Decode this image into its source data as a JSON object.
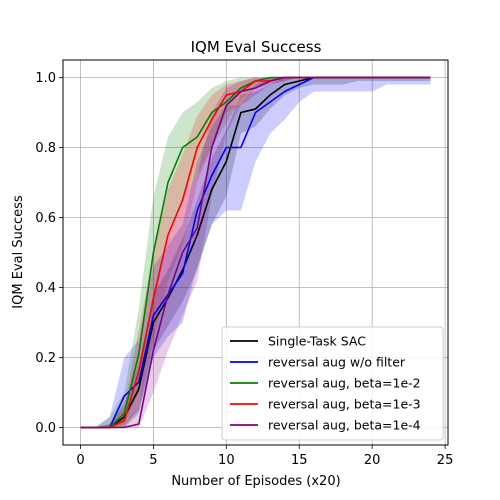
{
  "chart_data": {
    "type": "line",
    "title": "IQM Eval Success",
    "xlabel": "Number of Episodes (x20)",
    "ylabel": "IQM Eval Success",
    "xlim": [
      -1.2,
      25.2
    ],
    "ylim": [
      -0.05,
      1.05
    ],
    "xticks": [
      "0",
      "5",
      "10",
      "15",
      "20",
      "25"
    ],
    "yticks": [
      "0.0",
      "0.2",
      "0.4",
      "0.6",
      "0.8",
      "1.0"
    ],
    "grid": true,
    "legend_position": "bottom-right",
    "series": [
      {
        "name": "Single-Task SAC",
        "color": "#000000",
        "x": [
          0,
          1,
          2,
          3,
          4,
          5,
          6,
          7,
          8,
          9,
          10,
          11,
          12,
          13,
          14,
          15,
          16,
          17,
          18,
          19,
          20,
          21,
          22,
          23,
          24
        ],
        "values": [
          0,
          0,
          0,
          0.03,
          0.11,
          0.3,
          0.37,
          0.45,
          0.55,
          0.68,
          0.76,
          0.9,
          0.91,
          0.95,
          0.98,
          0.99,
          1.0,
          1.0,
          1.0,
          1.0,
          1.0,
          1.0,
          1.0,
          1.0,
          1.0
        ],
        "lower": [
          0,
          0,
          0,
          0,
          0.04,
          0.22,
          0.29,
          0.36,
          0.45,
          0.58,
          0.66,
          0.84,
          0.86,
          0.91,
          0.95,
          0.97,
          0.98,
          0.98,
          0.98,
          0.99,
          0.99,
          0.99,
          0.99,
          0.99,
          0.99
        ],
        "upper": [
          0,
          0,
          0.01,
          0.07,
          0.18,
          0.38,
          0.45,
          0.54,
          0.65,
          0.77,
          0.85,
          0.95,
          0.96,
          0.98,
          1.0,
          1.0,
          1.0,
          1.0,
          1.0,
          1.0,
          1.0,
          1.0,
          1.0,
          1.0,
          1.0
        ]
      },
      {
        "name": "reversal aug w/o filter",
        "color": "#0000ff",
        "x": [
          0,
          1,
          2,
          3,
          4,
          5,
          6,
          7,
          8,
          9,
          10,
          11,
          12,
          13,
          14,
          15,
          16,
          17,
          18,
          19,
          20,
          21,
          22,
          23,
          24
        ],
        "values": [
          0,
          0,
          0,
          0.09,
          0.13,
          0.32,
          0.38,
          0.44,
          0.62,
          0.72,
          0.8,
          0.8,
          0.9,
          0.93,
          0.96,
          0.98,
          1.0,
          1.0,
          1.0,
          1.0,
          1.0,
          1.0,
          1.0,
          1.0,
          1.0
        ],
        "lower": [
          0,
          0,
          0,
          0.01,
          0.05,
          0.2,
          0.26,
          0.3,
          0.46,
          0.58,
          0.62,
          0.62,
          0.76,
          0.84,
          0.88,
          0.93,
          0.96,
          0.96,
          0.96,
          0.96,
          0.96,
          0.98,
          0.98,
          0.98,
          0.98
        ],
        "upper": [
          0,
          0,
          0.03,
          0.2,
          0.25,
          0.46,
          0.52,
          0.58,
          0.76,
          0.86,
          0.92,
          0.92,
          0.98,
          1.0,
          1.0,
          1.0,
          1.0,
          1.0,
          1.0,
          1.0,
          1.0,
          1.0,
          1.0,
          1.0,
          1.0
        ]
      },
      {
        "name": "reversal aug, beta=1e-2",
        "color": "#008000",
        "x": [
          0,
          1,
          2,
          3,
          4,
          5,
          6,
          7,
          8,
          9,
          10,
          11,
          12,
          13,
          14,
          15,
          16,
          17,
          18,
          19,
          20,
          21,
          22,
          23,
          24
        ],
        "values": [
          0,
          0,
          0,
          0.04,
          0.21,
          0.5,
          0.7,
          0.8,
          0.83,
          0.9,
          0.93,
          0.97,
          0.99,
          1.0,
          1.0,
          1.0,
          1.0,
          1.0,
          1.0,
          1.0,
          1.0,
          1.0,
          1.0,
          1.0,
          1.0
        ],
        "lower": [
          0,
          0,
          0,
          0.01,
          0.1,
          0.34,
          0.55,
          0.66,
          0.72,
          0.8,
          0.87,
          0.94,
          0.97,
          0.99,
          1.0,
          1.0,
          1.0,
          1.0,
          1.0,
          1.0,
          1.0,
          1.0,
          1.0,
          1.0,
          1.0
        ],
        "upper": [
          0,
          0,
          0.03,
          0.1,
          0.34,
          0.66,
          0.83,
          0.9,
          0.93,
          0.97,
          0.99,
          1.0,
          1.0,
          1.0,
          1.0,
          1.0,
          1.0,
          1.0,
          1.0,
          1.0,
          1.0,
          1.0,
          1.0,
          1.0,
          1.0
        ]
      },
      {
        "name": "reversal aug, beta=1e-3",
        "color": "#ff0000",
        "x": [
          0,
          1,
          2,
          3,
          4,
          5,
          6,
          7,
          8,
          9,
          10,
          11,
          12,
          13,
          14,
          15,
          16,
          17,
          18,
          19,
          20,
          21,
          22,
          23,
          24
        ],
        "values": [
          0,
          0,
          0,
          0.02,
          0.16,
          0.37,
          0.55,
          0.65,
          0.8,
          0.88,
          0.95,
          0.96,
          0.99,
          0.99,
          1.0,
          1.0,
          1.0,
          1.0,
          1.0,
          1.0,
          1.0,
          1.0,
          1.0,
          1.0,
          1.0
        ],
        "lower": [
          0,
          0,
          0,
          0,
          0.06,
          0.25,
          0.42,
          0.52,
          0.7,
          0.8,
          0.9,
          0.92,
          0.97,
          0.98,
          0.99,
          1.0,
          1.0,
          1.0,
          1.0,
          1.0,
          1.0,
          1.0,
          1.0,
          1.0,
          1.0
        ],
        "upper": [
          0,
          0,
          0.01,
          0.06,
          0.28,
          0.5,
          0.68,
          0.78,
          0.89,
          0.95,
          0.98,
          0.99,
          1.0,
          1.0,
          1.0,
          1.0,
          1.0,
          1.0,
          1.0,
          1.0,
          1.0,
          1.0,
          1.0,
          1.0,
          1.0
        ]
      },
      {
        "name": "reversal aug, beta=1e-4",
        "color": "#800080",
        "x": [
          0,
          1,
          2,
          3,
          4,
          5,
          6,
          7,
          8,
          9,
          10,
          11,
          12,
          13,
          14,
          15,
          16,
          17,
          18,
          19,
          20,
          21,
          22,
          23,
          24
        ],
        "values": [
          0,
          0,
          0,
          0,
          0.01,
          0.22,
          0.38,
          0.5,
          0.57,
          0.8,
          0.92,
          0.96,
          0.97,
          0.99,
          1.0,
          1.0,
          1.0,
          1.0,
          1.0,
          1.0,
          1.0,
          1.0,
          1.0,
          1.0,
          1.0
        ],
        "lower": [
          0,
          0,
          0,
          0,
          0,
          0.1,
          0.22,
          0.32,
          0.42,
          0.66,
          0.84,
          0.92,
          0.95,
          0.98,
          0.99,
          1.0,
          1.0,
          1.0,
          1.0,
          1.0,
          1.0,
          1.0,
          1.0,
          1.0,
          1.0
        ],
        "upper": [
          0,
          0,
          0,
          0.01,
          0.06,
          0.36,
          0.54,
          0.66,
          0.72,
          0.9,
          0.97,
          0.99,
          1.0,
          1.0,
          1.0,
          1.0,
          1.0,
          1.0,
          1.0,
          1.0,
          1.0,
          1.0,
          1.0,
          1.0,
          1.0
        ]
      }
    ]
  }
}
